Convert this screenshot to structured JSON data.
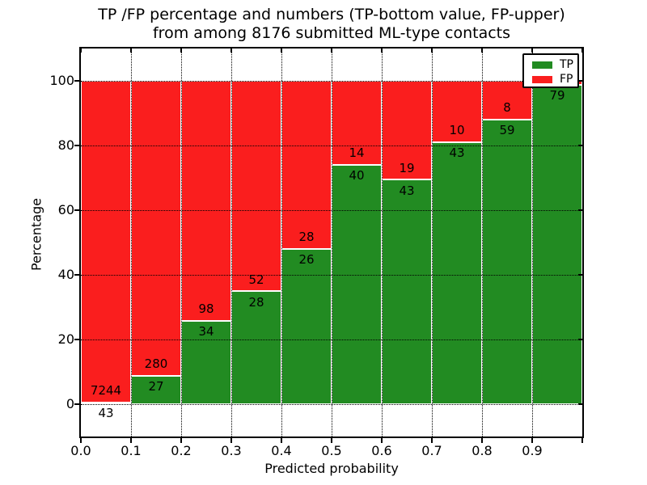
{
  "title": {
    "line1": "TP /FP percentage and numbers (TP-bottom value, FP-upper)",
    "line2": "from among 8176 submitted ML-type contacts"
  },
  "axes": {
    "xlabel": "Predicted probability",
    "ylabel": "Percentage",
    "x_tick_labels": [
      "0.0",
      "0.1",
      "0.2",
      "0.3",
      "0.4",
      "0.5",
      "0.6",
      "0.7",
      "0.8",
      "0.9"
    ],
    "y_tick_labels": [
      "0",
      "20",
      "40",
      "60",
      "80",
      "100"
    ],
    "y_tick_values": [
      0,
      20,
      40,
      60,
      80,
      100
    ]
  },
  "legend": {
    "items": [
      {
        "label": "TP",
        "color": "#228b22"
      },
      {
        "label": "FP",
        "color": "#fa1e1e"
      }
    ]
  },
  "colors": {
    "tp_green": "#228b22",
    "fp_red": "#fa1e1e",
    "grid": "#000000",
    "background": "#ffffff"
  },
  "chart_data": {
    "type": "bar",
    "subtype": "stacked-percentage-histogram",
    "title": "TP /FP percentage and numbers (TP-bottom value, FP-upper) from among 8176 submitted ML-type contacts",
    "xlabel": "Predicted probability",
    "ylabel": "Percentage",
    "xlim": [
      0.0,
      1.0
    ],
    "ylim": [
      -10,
      110
    ],
    "grid": "dotted black, on top of bars",
    "legend_position": "upper right",
    "bin_edges": [
      0.0,
      0.1,
      0.2,
      0.3,
      0.4,
      0.5,
      0.6,
      0.7,
      0.8,
      0.9,
      1.0
    ],
    "series": [
      {
        "name": "TP",
        "color": "#228b22",
        "counts": [
          43,
          27,
          34,
          28,
          26,
          40,
          43,
          43,
          59,
          79
        ]
      },
      {
        "name": "FP",
        "color": "#fa1e1e",
        "counts": [
          7244,
          280,
          98,
          52,
          28,
          14,
          19,
          10,
          8,
          null
        ]
      }
    ],
    "tp_count_labels": [
      "43",
      "27",
      "34",
      "28",
      "26",
      "40",
      "43",
      "43",
      "59",
      "79"
    ],
    "fp_count_labels": [
      "7244",
      "280",
      "98",
      "52",
      "28",
      "14",
      "19",
      "10",
      "8",
      ""
    ],
    "fp_label_last_bin_hidden_behind_legend": true,
    "tp_percent_of_bin": [
      0.6,
      8.8,
      25.8,
      35.0,
      48.1,
      74.1,
      69.4,
      81.1,
      88.1,
      98.8
    ]
  }
}
